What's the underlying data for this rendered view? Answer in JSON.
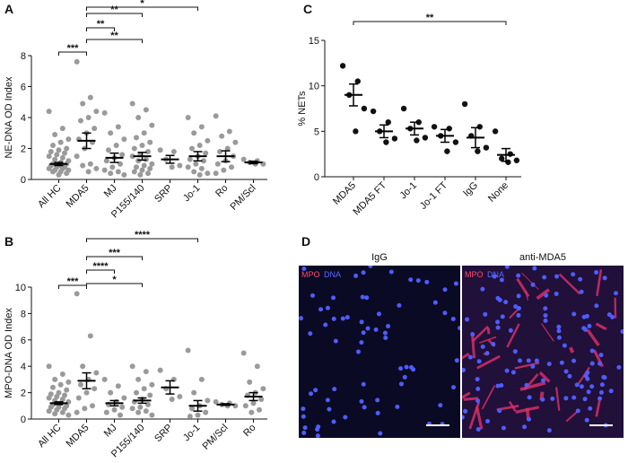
{
  "chart_data": [
    {
      "type": "dot",
      "panel_label": "A",
      "y_label": "NE-DNA OD Index",
      "categories": [
        "All HC",
        "MDA5",
        "MJ",
        "P155/140",
        "SRP",
        "Jo-1",
        "Ro",
        "PM/Scl"
      ],
      "ylim": [
        0,
        8
      ],
      "yticks": [
        0,
        2,
        4,
        6,
        8
      ],
      "color": "#9a9a9a",
      "points": [
        [
          4.4,
          3.3,
          2.9,
          2.6,
          2.4,
          2.2,
          2.0,
          1.9,
          1.8,
          1.7,
          1.6,
          1.5,
          1.4,
          1.3,
          1.2,
          1.1,
          1.0,
          1.0,
          0.9,
          0.9,
          0.8,
          0.8,
          0.7,
          0.7,
          0.6,
          0.6,
          0.5,
          0.5,
          0.4,
          0.3
        ],
        [
          7.6,
          5.3,
          4.9,
          4.4,
          4.0,
          3.8,
          3.3,
          3.0,
          2.6,
          2.4,
          2.0,
          1.5,
          1.0,
          0.9,
          0.7,
          0.5
        ],
        [
          4.3,
          3.4,
          3.0,
          2.6,
          2.2,
          1.9,
          1.6,
          1.4,
          1.2,
          1.0,
          0.8,
          0.6,
          0.5,
          0.4,
          0.3
        ],
        [
          4.9,
          4.5,
          4.0,
          3.5,
          3.0,
          2.7,
          2.4,
          2.2,
          2.0,
          1.8,
          1.6,
          1.5,
          1.3,
          1.2,
          1.0,
          0.9,
          0.8,
          0.7,
          0.6,
          0.5,
          0.4,
          0.3
        ],
        [
          1.9,
          1.8,
          1.3,
          0.9,
          0.8
        ],
        [
          4.0,
          3.4,
          3.0,
          2.5,
          2.2,
          2.0,
          1.7,
          1.5,
          1.3,
          1.2,
          1.0,
          0.8,
          0.7,
          0.5,
          0.4,
          0.3
        ],
        [
          4.1,
          3.1,
          2.8,
          2.4,
          2.0,
          1.8,
          1.5,
          1.2,
          1.0,
          0.8,
          0.6,
          0.4
        ],
        [
          1.3,
          1.2,
          1.1,
          1.0,
          1.0
        ]
      ],
      "means": [
        1.0,
        2.5,
        1.4,
        1.5,
        1.3,
        1.5,
        1.5,
        1.1
      ],
      "sems": [
        0.1,
        0.5,
        0.3,
        0.25,
        0.25,
        0.3,
        0.35,
        0.08
      ],
      "brackets": [
        {
          "from": 1,
          "to": 5,
          "label": "*"
        },
        {
          "from": 1,
          "to": 3,
          "label": "**"
        },
        {
          "from": 1,
          "to": 2,
          "label": "**"
        },
        {
          "from": 1,
          "to": 3,
          "label": "**"
        },
        {
          "from": 0,
          "to": 1,
          "label": "***"
        }
      ]
    },
    {
      "type": "dot",
      "panel_label": "B",
      "y_label": "MPO-DNA OD Index",
      "categories": [
        "All HC",
        "MDA5",
        "MJ",
        "P155/140",
        "SRP",
        "Jo-1",
        "PM/Scl",
        "Ro"
      ],
      "ylim": [
        0,
        10
      ],
      "yticks": [
        0,
        2,
        4,
        6,
        8,
        10
      ],
      "color": "#9a9a9a",
      "points": [
        [
          4.0,
          3.4,
          3.0,
          2.8,
          2.6,
          2.4,
          2.2,
          2.0,
          1.9,
          1.8,
          1.7,
          1.6,
          1.5,
          1.4,
          1.3,
          1.2,
          1.1,
          1.0,
          0.9,
          0.9,
          0.8,
          0.7,
          0.6,
          0.5,
          0.4,
          0.3
        ],
        [
          9.5,
          6.3,
          4.0,
          3.5,
          3.0,
          2.6,
          2.3,
          2.0,
          1.6,
          1.0,
          0.8,
          0.5
        ],
        [
          3.0,
          2.5,
          2.0,
          1.6,
          1.3,
          1.1,
          0.9,
          0.7,
          0.5,
          0.3
        ],
        [
          4.0,
          3.6,
          3.0,
          2.6,
          2.3,
          2.0,
          1.8,
          1.5,
          1.3,
          1.1,
          0.9,
          0.8,
          0.6,
          0.5,
          0.3
        ],
        [
          3.7,
          3.0,
          2.3,
          1.7,
          1.5
        ],
        [
          5.2,
          3.0,
          2.0,
          1.4,
          1.0,
          0.8,
          0.5,
          0.3,
          0.2
        ],
        [
          1.3,
          1.2,
          1.1,
          1.0,
          1.0
        ],
        [
          5.0,
          4.0,
          2.8,
          2.3,
          2.0,
          1.8,
          1.5,
          1.2,
          1.0,
          0.7,
          0.5
        ]
      ],
      "means": [
        1.2,
        2.9,
        1.2,
        1.4,
        2.4,
        1.0,
        1.1,
        1.7
      ],
      "sems": [
        0.1,
        0.6,
        0.2,
        0.2,
        0.5,
        0.4,
        0.06,
        0.3
      ],
      "brackets": [
        {
          "from": 1,
          "to": 5,
          "label": "****"
        },
        {
          "from": 1,
          "to": 3,
          "label": "***"
        },
        {
          "from": 1,
          "to": 2,
          "label": "****"
        },
        {
          "from": 1,
          "to": 3,
          "label": "*"
        },
        {
          "from": 0,
          "to": 1,
          "label": "***"
        }
      ]
    },
    {
      "type": "dot",
      "panel_label": "C",
      "y_label": "% NETs",
      "categories": [
        "MDA5",
        "MDA5 FT",
        "Jo-1",
        "Jo-1 FT",
        "IgG",
        "None"
      ],
      "ylim": [
        0,
        15
      ],
      "yticks": [
        0,
        5,
        10,
        15
      ],
      "color": "#111111",
      "points": [
        [
          12.2,
          10.5,
          9,
          7.5,
          5
        ],
        [
          7.2,
          6,
          5,
          4.2,
          3.8
        ],
        [
          7.5,
          6,
          5.3,
          4.3,
          4
        ],
        [
          5.5,
          5.3,
          4.5,
          3.8,
          2.8
        ],
        [
          8,
          5.5,
          4.5,
          3.2,
          2.8
        ],
        [
          5,
          2.5,
          2,
          1.8,
          1.6
        ]
      ],
      "means": [
        9,
        5,
        5.3,
        4.5,
        4.3,
        2.4
      ],
      "sems": [
        1.2,
        0.7,
        0.7,
        0.7,
        1.1,
        0.7
      ],
      "brackets": [
        {
          "from": 0,
          "to": 5,
          "label": "**"
        }
      ]
    },
    {
      "type": "images",
      "panel_label": "D",
      "panels": [
        {
          "title": "IgG",
          "stains": [
            "MPO",
            "DNA"
          ]
        },
        {
          "title": "anti-MDA5",
          "stains": [
            "MPO",
            "DNA"
          ]
        }
      ]
    }
  ]
}
